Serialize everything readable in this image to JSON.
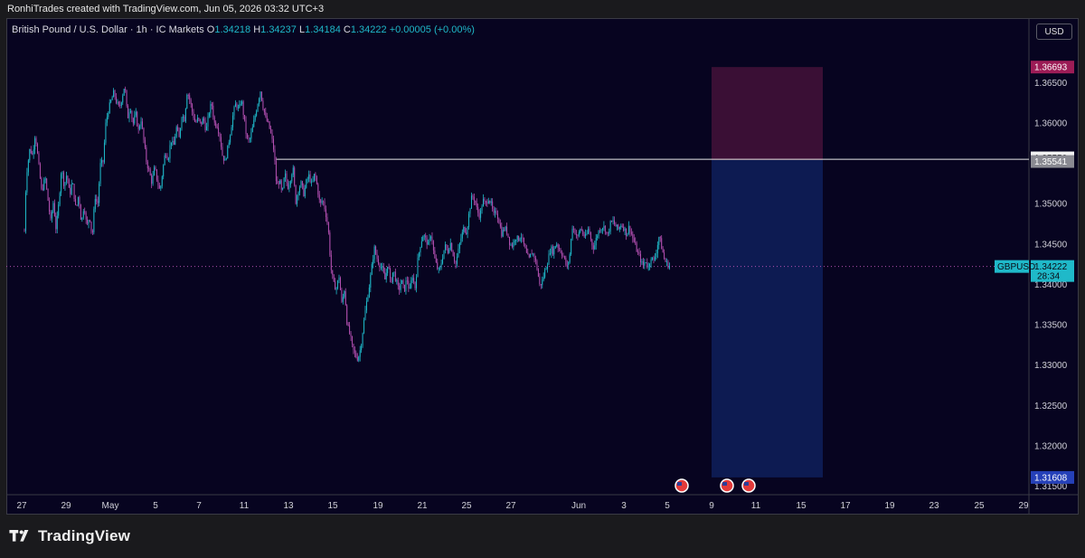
{
  "header": {
    "created_text": "RonhiTrades created with TradingView.com, Jun 05, 2026 03:32 UTC+3"
  },
  "legend": {
    "symbol_name": "British Pound / U.S. Dollar · 1h · IC Markets",
    "o_label": "O",
    "o_value": "1.34218",
    "h_label": "H",
    "h_value": "1.34237",
    "l_label": "L",
    "l_value": "1.34184",
    "c_label": "C",
    "c_value": "1.34222",
    "change": "+0.00005 (+0.00%)"
  },
  "toolbar": {
    "currency_label": "USD"
  },
  "colors": {
    "background": "#070420",
    "candle_up": "#1fb9c9",
    "candle_down": "#b24fb0",
    "stop_zone": "#3a0f35",
    "target_zone": "#0d1b52",
    "entry_line": "#e8e8e8",
    "price_tag": "#1fb9c9"
  },
  "branding": {
    "name": "TradingView"
  },
  "chart_data": {
    "type": "candlestick",
    "symbol": "GBPUSD",
    "interval": "1h",
    "price_axis": {
      "ylim": [
        1.31394,
        1.373
      ],
      "ticks": [
        "1.36500",
        "1.36000",
        "1.35000",
        "1.34500",
        "1.34000",
        "1.33500",
        "1.33000",
        "1.32500",
        "1.32000",
        "1.31500"
      ]
    },
    "time_axis": {
      "ticks": [
        "27",
        "29",
        "May",
        "5",
        "7",
        "11",
        "13",
        "15",
        "19",
        "21",
        "25",
        "27",
        "Jun",
        "3",
        "5",
        "9",
        "11",
        "15",
        "17",
        "19",
        "23",
        "25",
        "29"
      ]
    },
    "current_price": {
      "label": "GBPUSD",
      "value": "1.34222",
      "countdown": "28:34",
      "price": 1.34222
    },
    "short_position": {
      "stop": 1.36693,
      "stop_label": "1.36693",
      "entry": 1.35541,
      "entry_label": "1.35541",
      "target": 1.31608,
      "target_label": "1.31608"
    },
    "horizontal_line": {
      "price": 1.3555,
      "label": "1.35550"
    },
    "event_markers": [
      "US",
      "US",
      "US"
    ],
    "path": [
      [
        27,
        1.3466
      ],
      [
        29,
        1.3535
      ],
      [
        33,
        1.3568
      ],
      [
        36,
        1.356
      ],
      [
        39,
        1.3588
      ],
      [
        43,
        1.3545
      ],
      [
        46,
        1.3515
      ],
      [
        50,
        1.3532
      ],
      [
        53,
        1.3505
      ],
      [
        56,
        1.3478
      ],
      [
        59,
        1.3502
      ],
      [
        62,
        1.3468
      ],
      [
        65,
        1.35
      ],
      [
        68,
        1.3545
      ],
      [
        71,
        1.3522
      ],
      [
        74,
        1.3538
      ],
      [
        77,
        1.351
      ],
      [
        80,
        1.3528
      ],
      [
        84,
        1.3492
      ],
      [
        87,
        1.3512
      ],
      [
        90,
        1.3475
      ],
      [
        93,
        1.35
      ],
      [
        96,
        1.347
      ],
      [
        99,
        1.3486
      ],
      [
        102,
        1.3458
      ],
      [
        105,
        1.351
      ],
      [
        108,
        1.3498
      ],
      [
        111,
        1.3548
      ],
      [
        114,
        1.3552
      ],
      [
        117,
        1.36
      ],
      [
        120,
        1.3617
      ],
      [
        123,
        1.3628
      ],
      [
        126,
        1.3638
      ],
      [
        129,
        1.3625
      ],
      [
        132,
        1.3618
      ],
      [
        135,
        1.3632
      ],
      [
        138,
        1.3648
      ],
      [
        141,
        1.3605
      ],
      [
        144,
        1.3622
      ],
      [
        147,
        1.3598
      ],
      [
        150,
        1.3612
      ],
      [
        153,
        1.359
      ],
      [
        156,
        1.3605
      ],
      [
        159,
        1.3578
      ],
      [
        162,
        1.3552
      ],
      [
        165,
        1.354
      ],
      [
        168,
        1.3526
      ],
      [
        171,
        1.3545
      ],
      [
        174,
        1.3528
      ],
      [
        177,
        1.3515
      ],
      [
        180,
        1.3542
      ],
      [
        183,
        1.3565
      ],
      [
        186,
        1.3555
      ],
      [
        189,
        1.358
      ],
      [
        192,
        1.357
      ],
      [
        195,
        1.3595
      ],
      [
        198,
        1.358
      ],
      [
        201,
        1.361
      ],
      [
        204,
        1.3605
      ],
      [
        207,
        1.364
      ],
      [
        210,
        1.3628
      ],
      [
        213,
        1.3612
      ],
      [
        216,
        1.36
      ],
      [
        219,
        1.3605
      ],
      [
        222,
        1.3598
      ],
      [
        225,
        1.3606
      ],
      [
        228,
        1.359
      ],
      [
        231,
        1.3612
      ],
      [
        234,
        1.3625
      ],
      [
        237,
        1.36
      ],
      [
        240,
        1.3598
      ],
      [
        243,
        1.3585
      ],
      [
        246,
        1.356
      ],
      [
        249,
        1.3552
      ],
      [
        252,
        1.357
      ],
      [
        255,
        1.359
      ],
      [
        258,
        1.3612
      ],
      [
        261,
        1.3625
      ],
      [
        264,
        1.3615
      ],
      [
        267,
        1.363
      ],
      [
        270,
        1.3605
      ],
      [
        273,
        1.358
      ],
      [
        276,
        1.3578
      ],
      [
        279,
        1.3592
      ],
      [
        282,
        1.3608
      ],
      [
        285,
        1.3625
      ],
      [
        288,
        1.364
      ],
      [
        291,
        1.362
      ],
      [
        294,
        1.3605
      ],
      [
        297,
        1.3598
      ],
      [
        300,
        1.3585
      ],
      [
        303,
        1.3565
      ],
      [
        306,
        1.352
      ],
      [
        309,
        1.353
      ],
      [
        312,
        1.351
      ],
      [
        315,
        1.3538
      ],
      [
        318,
        1.352
      ],
      [
        321,
        1.353
      ],
      [
        324,
        1.3545
      ],
      [
        327,
        1.3502
      ],
      [
        330,
        1.3518
      ],
      [
        333,
        1.3525
      ],
      [
        336,
        1.3512
      ],
      [
        339,
        1.3528
      ],
      [
        342,
        1.3535
      ],
      [
        345,
        1.3522
      ],
      [
        348,
        1.3538
      ],
      [
        351,
        1.352
      ],
      [
        354,
        1.3498
      ],
      [
        357,
        1.3505
      ],
      [
        360,
        1.349
      ],
      [
        363,
        1.347
      ],
      [
        366,
        1.342
      ],
      [
        369,
        1.34
      ],
      [
        372,
        1.3395
      ],
      [
        375,
        1.341
      ],
      [
        378,
        1.3375
      ],
      [
        381,
        1.3395
      ],
      [
        384,
        1.335
      ],
      [
        387,
        1.3338
      ],
      [
        390,
        1.332
      ],
      [
        393,
        1.3312
      ],
      [
        396,
        1.3308
      ],
      [
        399,
        1.3322
      ],
      [
        402,
        1.335
      ],
      [
        405,
        1.3375
      ],
      [
        408,
        1.3395
      ],
      [
        411,
        1.342
      ],
      [
        414,
        1.3445
      ],
      [
        417,
        1.3432
      ],
      [
        420,
        1.3425
      ],
      [
        423,
        1.3418
      ],
      [
        426,
        1.3405
      ],
      [
        429,
        1.3428
      ],
      [
        432,
        1.34
      ],
      [
        435,
        1.3418
      ],
      [
        438,
        1.3405
      ],
      [
        441,
        1.3392
      ],
      [
        444,
        1.3405
      ],
      [
        447,
        1.3392
      ],
      [
        450,
        1.3408
      ],
      [
        453,
        1.339
      ],
      [
        456,
        1.3412
      ],
      [
        459,
        1.3395
      ],
      [
        462,
        1.343
      ],
      [
        465,
        1.345
      ],
      [
        468,
        1.3462
      ],
      [
        471,
        1.3455
      ],
      [
        474,
        1.3448
      ],
      [
        477,
        1.3465
      ],
      [
        480,
        1.3435
      ],
      [
        483,
        1.3422
      ],
      [
        486,
        1.3415
      ],
      [
        489,
        1.3432
      ],
      [
        492,
        1.3448
      ],
      [
        495,
        1.344
      ],
      [
        498,
        1.3452
      ],
      [
        501,
        1.3438
      ],
      [
        504,
        1.3425
      ],
      [
        507,
        1.3442
      ],
      [
        510,
        1.3458
      ],
      [
        513,
        1.347
      ],
      [
        516,
        1.3465
      ],
      [
        519,
        1.349
      ],
      [
        522,
        1.351
      ],
      [
        525,
        1.3505
      ],
      [
        528,
        1.349
      ],
      [
        531,
        1.3485
      ],
      [
        534,
        1.3505
      ],
      [
        537,
        1.3498
      ],
      [
        540,
        1.3508
      ],
      [
        543,
        1.35
      ],
      [
        546,
        1.3485
      ],
      [
        549,
        1.349
      ],
      [
        552,
        1.3478
      ],
      [
        555,
        1.3462
      ],
      [
        558,
        1.347
      ],
      [
        561,
        1.3465
      ],
      [
        564,
        1.345
      ],
      [
        567,
        1.3448
      ],
      [
        570,
        1.346
      ],
      [
        573,
        1.3455
      ],
      [
        576,
        1.3462
      ],
      [
        579,
        1.345
      ],
      [
        582,
        1.3438
      ],
      [
        585,
        1.343
      ],
      [
        588,
        1.344
      ],
      [
        591,
        1.3435
      ],
      [
        594,
        1.342
      ],
      [
        597,
        1.3398
      ],
      [
        600,
        1.3405
      ],
      [
        603,
        1.3418
      ],
      [
        606,
        1.343
      ],
      [
        609,
        1.3445
      ],
      [
        612,
        1.344
      ],
      [
        615,
        1.3452
      ],
      [
        618,
        1.3445
      ],
      [
        621,
        1.344
      ],
      [
        624,
        1.3432
      ],
      [
        627,
        1.342
      ],
      [
        630,
        1.3435
      ],
      [
        633,
        1.3472
      ],
      [
        636,
        1.3465
      ],
      [
        639,
        1.3458
      ],
      [
        642,
        1.347
      ],
      [
        645,
        1.3462
      ],
      [
        648,
        1.3458
      ],
      [
        651,
        1.347
      ],
      [
        654,
        1.3452
      ],
      [
        657,
        1.3445
      ],
      [
        660,
        1.346
      ],
      [
        663,
        1.3468
      ],
      [
        666,
        1.3472
      ],
      [
        669,
        1.347
      ],
      [
        672,
        1.346
      ],
      [
        675,
        1.3475
      ],
      [
        678,
        1.3478
      ],
      [
        681,
        1.3472
      ],
      [
        684,
        1.3468
      ],
      [
        687,
        1.3475
      ],
      [
        690,
        1.347
      ],
      [
        693,
        1.3462
      ],
      [
        696,
        1.3472
      ],
      [
        699,
        1.346
      ],
      [
        702,
        1.345
      ],
      [
        705,
        1.344
      ],
      [
        708,
        1.3432
      ],
      [
        711,
        1.3422
      ],
      [
        714,
        1.343
      ],
      [
        717,
        1.342
      ],
      [
        720,
        1.3435
      ],
      [
        723,
        1.3428
      ],
      [
        726,
        1.3442
      ],
      [
        729,
        1.346
      ],
      [
        732,
        1.3445
      ],
      [
        735,
        1.343
      ],
      [
        738,
        1.3425
      ],
      [
        741,
        1.3422
      ]
    ]
  }
}
